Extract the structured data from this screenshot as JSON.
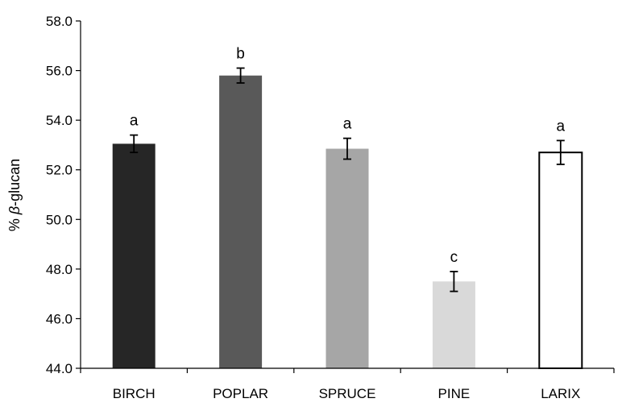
{
  "chart_data": {
    "type": "bar",
    "categories": [
      "BIRCH",
      "POPLAR",
      "SPRUCE",
      "PINE",
      "LARIX"
    ],
    "values": [
      53.05,
      55.8,
      52.85,
      47.5,
      52.7
    ],
    "errors": [
      0.35,
      0.3,
      0.42,
      0.4,
      0.48
    ],
    "significance_letters": [
      "a",
      "b",
      "a",
      "c",
      "a"
    ],
    "bar_colors": [
      "#262626",
      "#595959",
      "#a6a6a6",
      "#d9d9d9",
      "#ffffff"
    ],
    "ylabel_prefix": "% ",
    "ylabel_symbol": "β",
    "ylabel_suffix": "-glucan",
    "ylim": [
      44.0,
      58.0
    ],
    "yticks": [
      "44.0",
      "46.0",
      "48.0",
      "50.0",
      "52.0",
      "54.0",
      "56.0",
      "58.0"
    ],
    "grid": false,
    "legend": "none"
  }
}
